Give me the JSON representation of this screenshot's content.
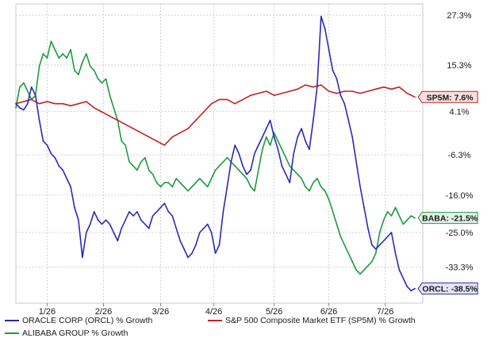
{
  "chart_data": {
    "type": "line",
    "y_unit": "% Growth",
    "ylim": [
      -42,
      30
    ],
    "y_ticks": [
      "27.3%",
      "15.3%",
      "4.1%",
      "-6.3%",
      "-16.0%",
      "-25.0%",
      "-33.3%"
    ],
    "y_tick_values": [
      27.3,
      15.3,
      4.1,
      -6.3,
      -16.0,
      -25.0,
      -33.3
    ],
    "x_ticks": [
      "1/26",
      "2/26",
      "3/26",
      "4/26",
      "5/26",
      "6/26",
      "7/26"
    ],
    "grid": true,
    "series": [
      {
        "name": "ORACLE CORP (ORCL) % Growth",
        "end_label": "ORCL: -38.5%",
        "color": "#2a2ab5",
        "x": [
          0,
          5,
          10,
          15,
          20,
          25,
          30,
          35,
          40,
          45,
          50,
          55,
          60,
          65,
          70,
          75,
          80,
          85,
          90,
          95,
          100,
          105,
          110,
          115,
          120,
          125,
          130,
          135,
          140,
          145,
          150,
          155,
          160,
          165,
          170,
          175,
          180,
          185,
          190,
          195,
          200,
          205,
          210,
          215,
          220,
          225,
          230,
          235,
          240,
          245,
          250,
          255,
          260,
          265,
          270,
          275,
          280,
          285,
          290,
          295,
          300,
          305,
          310,
          315,
          320,
          325,
          330,
          335,
          340,
          345,
          350,
          355,
          360,
          365,
          370,
          375,
          380,
          385,
          390,
          395,
          400,
          405,
          410,
          415,
          420,
          425,
          430,
          435,
          440,
          445,
          450,
          455,
          460,
          465,
          470,
          475,
          480,
          485,
          490,
          495,
          500,
          505,
          510
        ],
        "values": [
          6,
          5,
          4.5,
          6,
          10,
          8,
          2,
          -3,
          -4,
          -6,
          -7,
          -9,
          -10,
          -12,
          -14,
          -19,
          -22,
          -31,
          -25,
          -23,
          -20,
          -22,
          -23,
          -22,
          -23,
          -25,
          -27,
          -24,
          -22,
          -20,
          -21,
          -20,
          -22,
          -23,
          -24,
          -21,
          -20,
          -19,
          -18,
          -20,
          -21,
          -24,
          -27,
          -29,
          -31,
          -30,
          -28,
          -25,
          -24,
          -23,
          -25,
          -30,
          -28,
          -20,
          -14,
          -8,
          -4,
          -6,
          -9,
          -11,
          -10,
          -6,
          -4,
          -2,
          0,
          2,
          -2,
          -5,
          -9,
          -11,
          -13,
          -6,
          -2,
          0,
          -3,
          -5,
          2,
          10,
          27,
          24,
          19,
          14,
          12,
          8,
          6,
          2,
          -2,
          -8,
          -14,
          -19,
          -24,
          -28,
          -29,
          -28,
          -27,
          -26,
          -25,
          -30,
          -34,
          -36,
          -38,
          -39,
          -38.5
        ]
      },
      {
        "name": "S&P 500 Composite Market ETF (SP5M) % Growth",
        "end_label": "SP5M: 7.6%",
        "color": "#c42020",
        "x": [
          0,
          10,
          20,
          30,
          40,
          50,
          60,
          70,
          80,
          90,
          100,
          110,
          120,
          130,
          140,
          150,
          160,
          170,
          180,
          190,
          200,
          210,
          220,
          230,
          240,
          250,
          260,
          270,
          280,
          290,
          300,
          310,
          320,
          330,
          340,
          350,
          360,
          370,
          380,
          390,
          400,
          410,
          420,
          430,
          440,
          450,
          460,
          470,
          480,
          490,
          500,
          510
        ],
        "values": [
          6,
          6.5,
          7,
          6,
          6.5,
          6,
          6,
          5.5,
          6,
          6.5,
          5,
          4,
          3,
          2,
          1,
          0,
          -1,
          -2,
          -3,
          -4,
          -2,
          -1,
          0,
          2,
          4,
          6,
          7,
          7,
          6,
          7,
          8,
          8.5,
          9,
          8,
          8.5,
          9,
          9.5,
          10.5,
          10,
          10.5,
          9,
          8.5,
          9,
          9,
          8.5,
          9,
          9.5,
          10,
          9.5,
          10,
          8.5,
          7.6
        ]
      },
      {
        "name": "ALIBABA GROUP % Growth",
        "end_label": "BABA: -21.5%",
        "color": "#1e9a3c",
        "x": [
          0,
          5,
          10,
          15,
          20,
          25,
          30,
          35,
          40,
          45,
          50,
          55,
          60,
          65,
          70,
          75,
          80,
          85,
          90,
          95,
          100,
          105,
          110,
          115,
          120,
          125,
          130,
          135,
          140,
          145,
          150,
          155,
          160,
          165,
          170,
          175,
          180,
          185,
          190,
          195,
          200,
          205,
          210,
          215,
          220,
          225,
          230,
          235,
          240,
          245,
          250,
          255,
          260,
          265,
          270,
          275,
          280,
          285,
          290,
          295,
          300,
          305,
          310,
          315,
          320,
          325,
          330,
          335,
          340,
          345,
          350,
          355,
          360,
          365,
          370,
          375,
          380,
          385,
          390,
          395,
          400,
          405,
          410,
          415,
          420,
          425,
          430,
          435,
          440,
          445,
          450,
          455,
          460,
          465,
          470,
          475,
          480,
          485,
          490,
          495,
          500,
          505,
          510
        ],
        "values": [
          5,
          10,
          11,
          9,
          7,
          8,
          15,
          18,
          17,
          21,
          19,
          17,
          18,
          17,
          19,
          14,
          13,
          16,
          18,
          15,
          14,
          12,
          11,
          12,
          8,
          5,
          2,
          -3,
          -4,
          -8,
          -9,
          -10,
          -8,
          -7,
          -10,
          -11,
          -13,
          -14,
          -13,
          -13,
          -14,
          -12,
          -13,
          -14,
          -15,
          -14,
          -13,
          -12,
          -13,
          -14,
          -12,
          -10,
          -9,
          -8,
          -7,
          -8,
          -9,
          -10,
          -11,
          -12,
          -14,
          -15,
          -10,
          -5,
          -2,
          -4,
          -1,
          -3,
          -5,
          -7,
          -9,
          -10,
          -11,
          -12,
          -14,
          -15,
          -13,
          -12,
          -14,
          -15,
          -17,
          -20,
          -23,
          -26,
          -28,
          -30,
          -32,
          -34,
          -35,
          -34,
          -33,
          -32,
          -30,
          -25,
          -22,
          -20,
          -21,
          -19,
          -21,
          -23,
          -22,
          -21,
          -21.5
        ]
      }
    ]
  }
}
